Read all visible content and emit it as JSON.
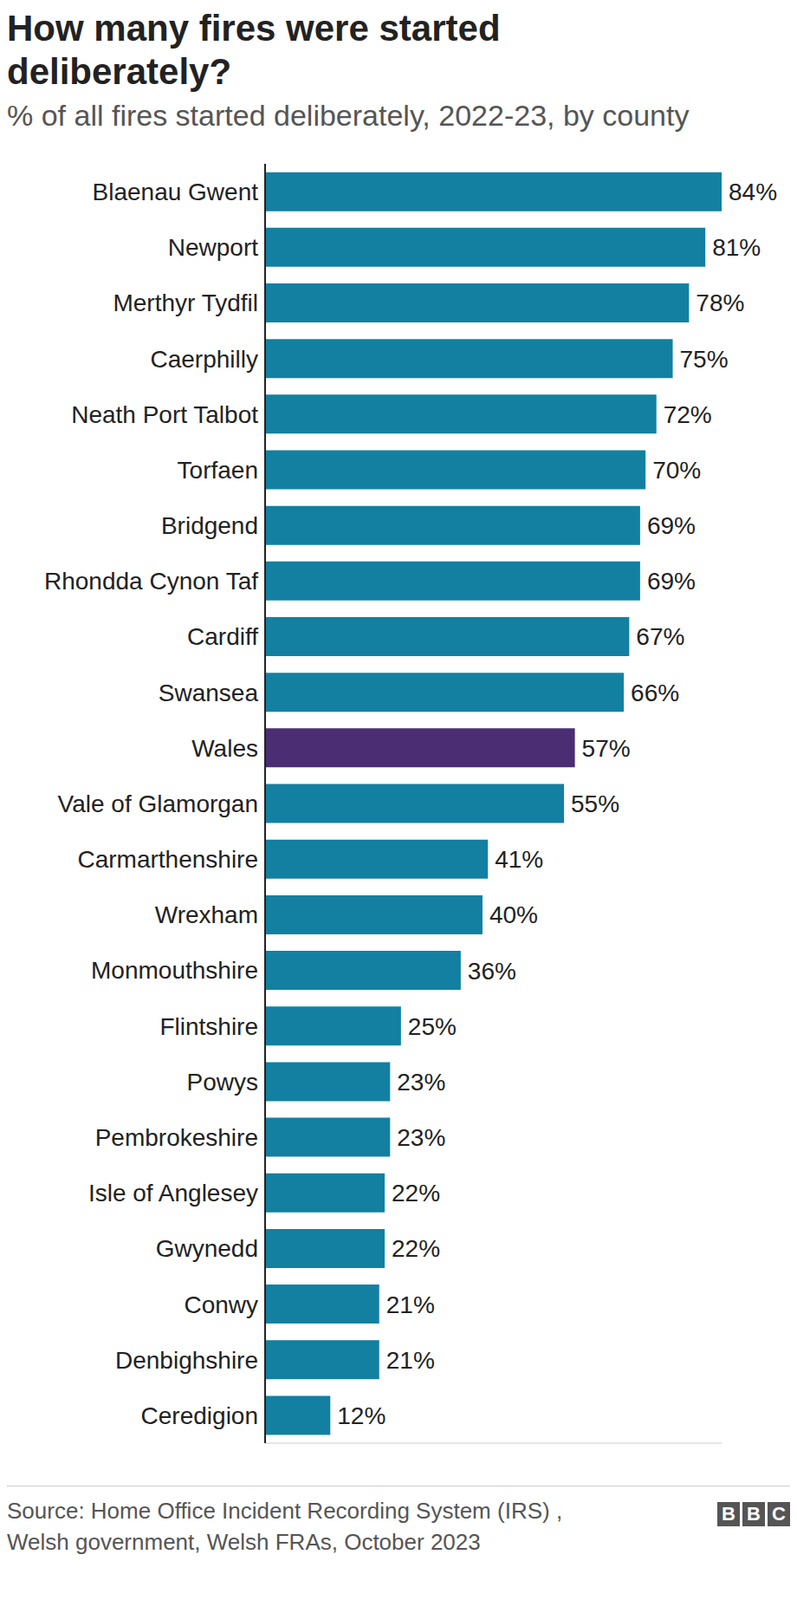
{
  "chart_data": {
    "type": "bar",
    "orientation": "horizontal",
    "title": "How many fires were started deliberately?",
    "subtitle": "% of all fires started deliberately, 2022-23, by county",
    "categories": [
      "Blaenau Gwent",
      "Newport",
      "Merthyr Tydfil",
      "Caerphilly",
      "Neath Port Talbot",
      "Torfaen",
      "Bridgend",
      "Rhondda Cynon Taf",
      "Cardiff",
      "Swansea",
      "Wales",
      "Vale of Glamorgan",
      "Carmarthenshire",
      "Wrexham",
      "Monmouthshire",
      "Flintshire",
      "Powys",
      "Pembrokeshire",
      "Isle of Anglesey",
      "Gwynedd",
      "Conwy",
      "Denbighshire",
      "Ceredigion"
    ],
    "values": [
      84,
      81,
      78,
      75,
      72,
      70,
      69,
      69,
      67,
      66,
      57,
      55,
      41,
      40,
      36,
      25,
      23,
      23,
      22,
      22,
      21,
      21,
      12
    ],
    "value_labels": [
      "84%",
      "81%",
      "78%",
      "75%",
      "72%",
      "70%",
      "69%",
      "69%",
      "67%",
      "66%",
      "57%",
      "55%",
      "41%",
      "40%",
      "36%",
      "25%",
      "23%",
      "23%",
      "22%",
      "22%",
      "21%",
      "21%",
      "12%"
    ],
    "colors": [
      "#1380a1",
      "#1380a1",
      "#1380a1",
      "#1380a1",
      "#1380a1",
      "#1380a1",
      "#1380a1",
      "#1380a1",
      "#1380a1",
      "#1380a1",
      "#4b2d73",
      "#1380a1",
      "#1380a1",
      "#1380a1",
      "#1380a1",
      "#1380a1",
      "#1380a1",
      "#1380a1",
      "#1380a1",
      "#1380a1",
      "#1380a1",
      "#1380a1",
      "#1380a1"
    ],
    "xlim": [
      0,
      84
    ],
    "data_labels": true,
    "tick_labels": "y",
    "grid": false,
    "source": [
      "Source: Home Office Incident Recording System (IRS) ,",
      "Welsh government, Welsh FRAs, October 2023"
    ],
    "logo": "BBC"
  }
}
